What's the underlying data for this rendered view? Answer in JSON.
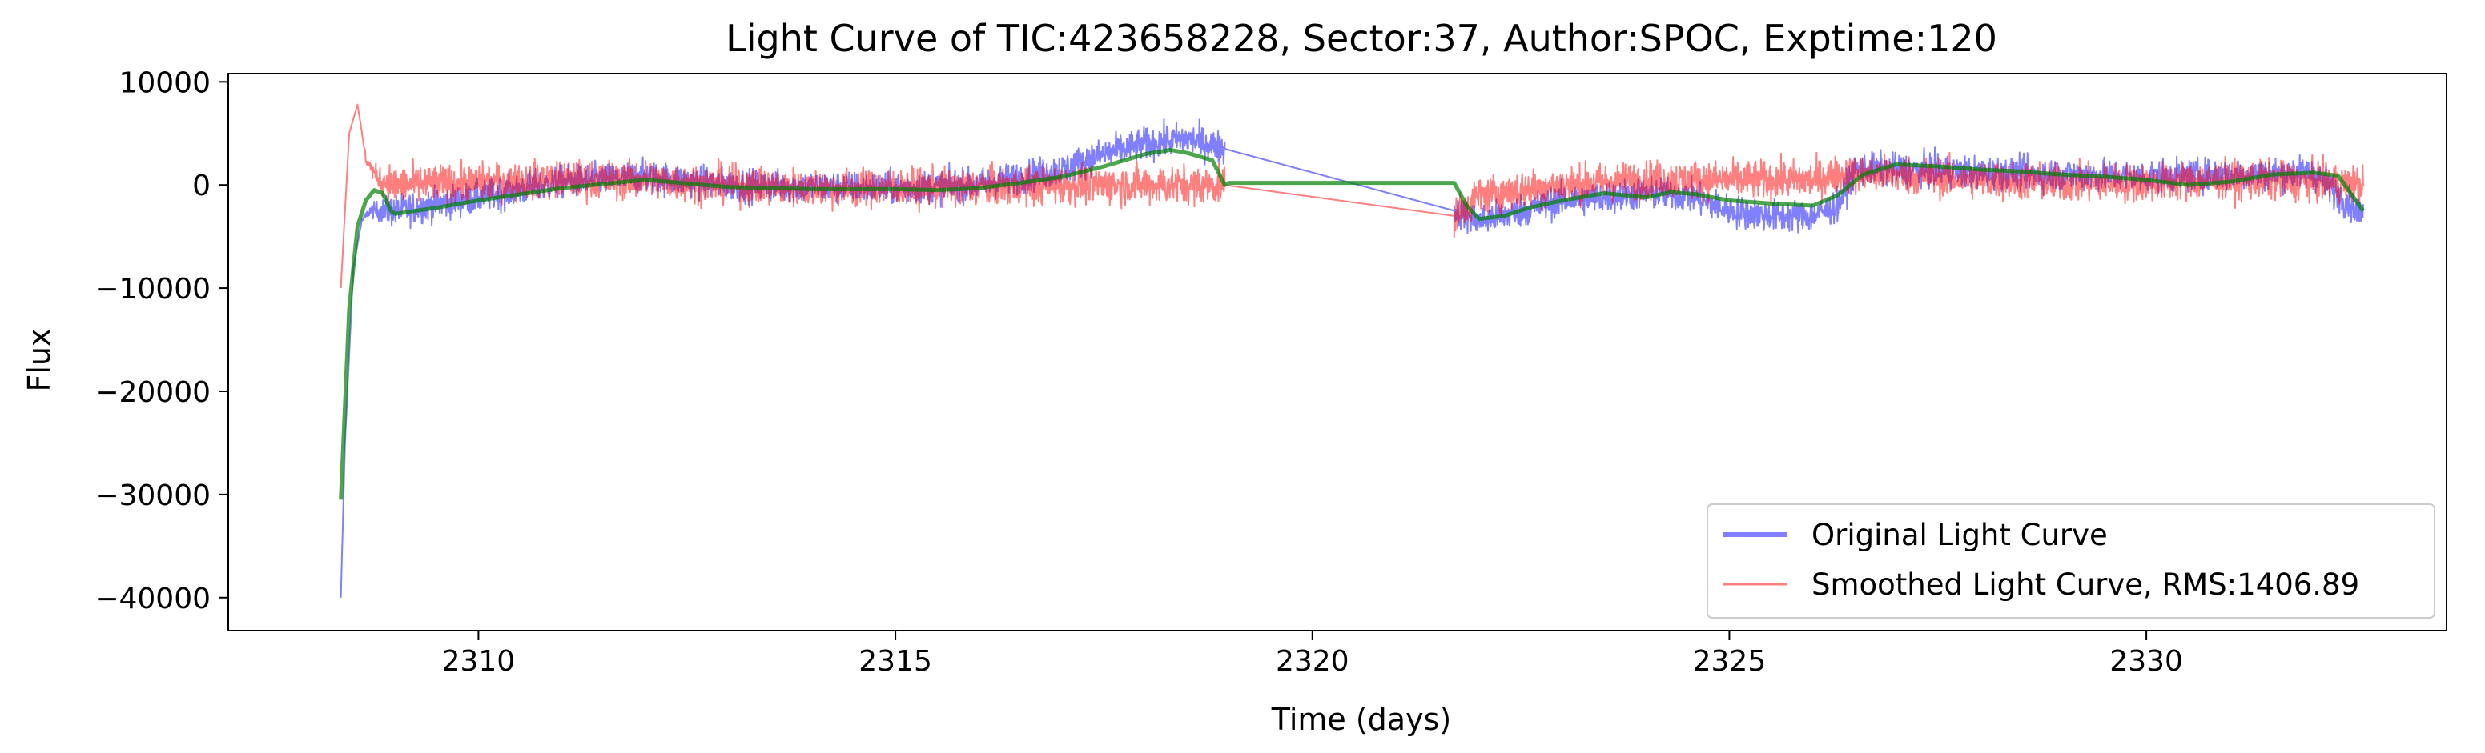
{
  "chart_data": {
    "type": "line",
    "title": "Light Curve of TIC:423658228, Sector:37, Author:SPOC, Exptime:120",
    "xlabel": "Time (days)",
    "ylabel": "Flux",
    "xlim": [
      2307.0,
      2333.6
    ],
    "ylim": [
      -43200,
      10800
    ],
    "xticks": [
      2310,
      2315,
      2320,
      2325,
      2330
    ],
    "yticks": [
      -40000,
      -30000,
      -20000,
      -10000,
      0,
      10000
    ],
    "xtick_labels": [
      "2310",
      "2315",
      "2320",
      "2325",
      "2330"
    ],
    "ytick_labels": [
      "−40000",
      "−30000",
      "−20000",
      "−10000",
      "0",
      "10000"
    ],
    "grid": false,
    "legend_position": "lower-right",
    "segments": [
      [
        2308.35,
        2318.95
      ],
      [
        2321.7,
        2332.6
      ]
    ],
    "series": [
      {
        "name": "Original Light Curve",
        "color": "#0000ff",
        "opacity": 0.5,
        "noise_amplitude": 2200,
        "x": [
          2308.35,
          2308.4,
          2308.5,
          2308.6,
          2308.7,
          2309.0,
          2310.0,
          2311.0,
          2312.0,
          2313.0,
          2314.0,
          2315.0,
          2316.0,
          2317.0,
          2317.5,
          2318.0,
          2318.5,
          2318.95,
          2321.7,
          2322.0,
          2322.5,
          2323.0,
          2323.5,
          2324.0,
          2324.5,
          2325.0,
          2325.5,
          2326.0,
          2326.3,
          2326.5,
          2327.0,
          2328.0,
          2329.0,
          2330.0,
          2331.0,
          2332.0,
          2332.6
        ],
        "y": [
          -40000,
          -25000,
          -8000,
          -3500,
          -2500,
          -2500,
          -1200,
          300,
          800,
          0,
          -200,
          -300,
          0,
          1500,
          3000,
          4000,
          4500,
          3500,
          -2500,
          -3500,
          -2500,
          -1500,
          -1200,
          -800,
          -1000,
          -2500,
          -3000,
          -3000,
          -2000,
          1500,
          1500,
          1200,
          1000,
          800,
          1000,
          1200,
          -3000
        ]
      },
      {
        "name": "Smoothed Light Curve, RMS:1406.89",
        "color": "#ff0000",
        "opacity": 0.5,
        "noise_amplitude": 2600,
        "x": [
          2308.35,
          2308.45,
          2308.55,
          2308.65,
          2308.8,
          2309.0,
          2310.0,
          2311.0,
          2312.0,
          2313.0,
          2314.0,
          2315.0,
          2316.0,
          2317.0,
          2318.0,
          2318.5,
          2318.95,
          2321.7,
          2322.0,
          2323.0,
          2324.0,
          2325.0,
          2326.0,
          2326.3,
          2327.0,
          2328.0,
          2329.0,
          2330.0,
          2331.0,
          2332.0,
          2332.6
        ],
        "y": [
          -10000,
          5000,
          7800,
          2500,
          500,
          0,
          200,
          500,
          500,
          0,
          -300,
          -300,
          -200,
          0,
          0,
          0,
          0,
          -3000,
          -1000,
          0,
          500,
          500,
          500,
          1000,
          1000,
          500,
          200,
          200,
          500,
          300,
          0
        ]
      },
      {
        "name": "",
        "color": "#008000",
        "opacity": 0.7,
        "noise_amplitude": 0,
        "x": [
          2308.35,
          2308.45,
          2308.55,
          2308.65,
          2308.75,
          2308.85,
          2308.95,
          2309.0,
          2309.5,
          2310.0,
          2311.0,
          2312.0,
          2313.0,
          2314.0,
          2315.0,
          2315.5,
          2316.0,
          2316.5,
          2317.0,
          2317.5,
          2318.0,
          2318.3,
          2318.5,
          2318.8,
          2318.95,
          2319.0,
          2321.7,
          2321.85,
          2322.0,
          2322.3,
          2322.6,
          2323.0,
          2323.5,
          2324.0,
          2324.3,
          2324.6,
          2325.0,
          2325.5,
          2326.0,
          2326.3,
          2326.6,
          2327.0,
          2327.5,
          2328.0,
          2328.5,
          2329.0,
          2329.5,
          2330.0,
          2330.5,
          2331.0,
          2331.5,
          2332.0,
          2332.3,
          2332.6
        ],
        "y": [
          -30500,
          -12000,
          -4000,
          -1500,
          -500,
          -800,
          -2500,
          -2800,
          -2200,
          -1500,
          -300,
          500,
          -200,
          -400,
          -400,
          -500,
          -300,
          200,
          800,
          1800,
          3000,
          3400,
          3100,
          2400,
          0,
          200,
          200,
          -2000,
          -3300,
          -3000,
          -2200,
          -1500,
          -800,
          -1200,
          -700,
          -900,
          -1500,
          -1800,
          -2000,
          -1000,
          1000,
          2000,
          1800,
          1500,
          1300,
          1000,
          800,
          500,
          0,
          300,
          1000,
          1200,
          900,
          -2500
        ]
      }
    ]
  }
}
